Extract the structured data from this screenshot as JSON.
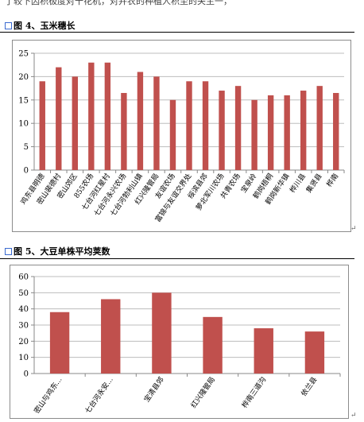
{
  "document": {
    "top_text": "了较下因积极度对十花机，对并农的种植人积至的关主一，",
    "chart_4_caption": "图 4、玉米穗长",
    "chart_5_caption": "图 5、大豆单株平均荚数"
  },
  "chart_data": [
    {
      "type": "bar",
      "title": "",
      "xlabel": "",
      "ylabel": "",
      "ylim": [
        0,
        25
      ],
      "yticks": [
        0,
        5,
        10,
        15,
        20,
        25
      ],
      "grid": true,
      "bar_color": "#c0504d",
      "categories": [
        "鸡东县明德",
        "密山裴德村",
        "密山郊区",
        "855农场",
        "七台河红星村",
        "七台河永兴农场",
        "七台河勃利山镇",
        "红兴隆管局",
        "友谊农场",
        "富锦与友谊交界处",
        "绥滨县郊",
        "萝北军川农场",
        "共青农场",
        "宝泉岭",
        "鹤岗梧桐",
        "鹤岗新华镇",
        "桦川县",
        "集贤县",
        "桦南"
      ],
      "values": [
        19,
        22,
        20,
        23,
        23,
        16.5,
        21,
        20,
        15,
        19,
        19,
        17,
        18,
        15,
        16,
        16,
        17,
        18,
        16.5
      ]
    },
    {
      "type": "bar",
      "title": "",
      "xlabel": "",
      "ylabel": "",
      "ylim": [
        0,
        60
      ],
      "yticks": [
        0,
        10,
        20,
        30,
        40,
        50,
        60
      ],
      "grid": true,
      "bar_color": "#c0504d",
      "categories": [
        "密山与鸡东...",
        "七台河永安...",
        "宝清县郊",
        "红兴隆管局",
        "桦南三道沟",
        "依兰县"
      ],
      "values": [
        38,
        46,
        50,
        35,
        28,
        26
      ]
    }
  ]
}
